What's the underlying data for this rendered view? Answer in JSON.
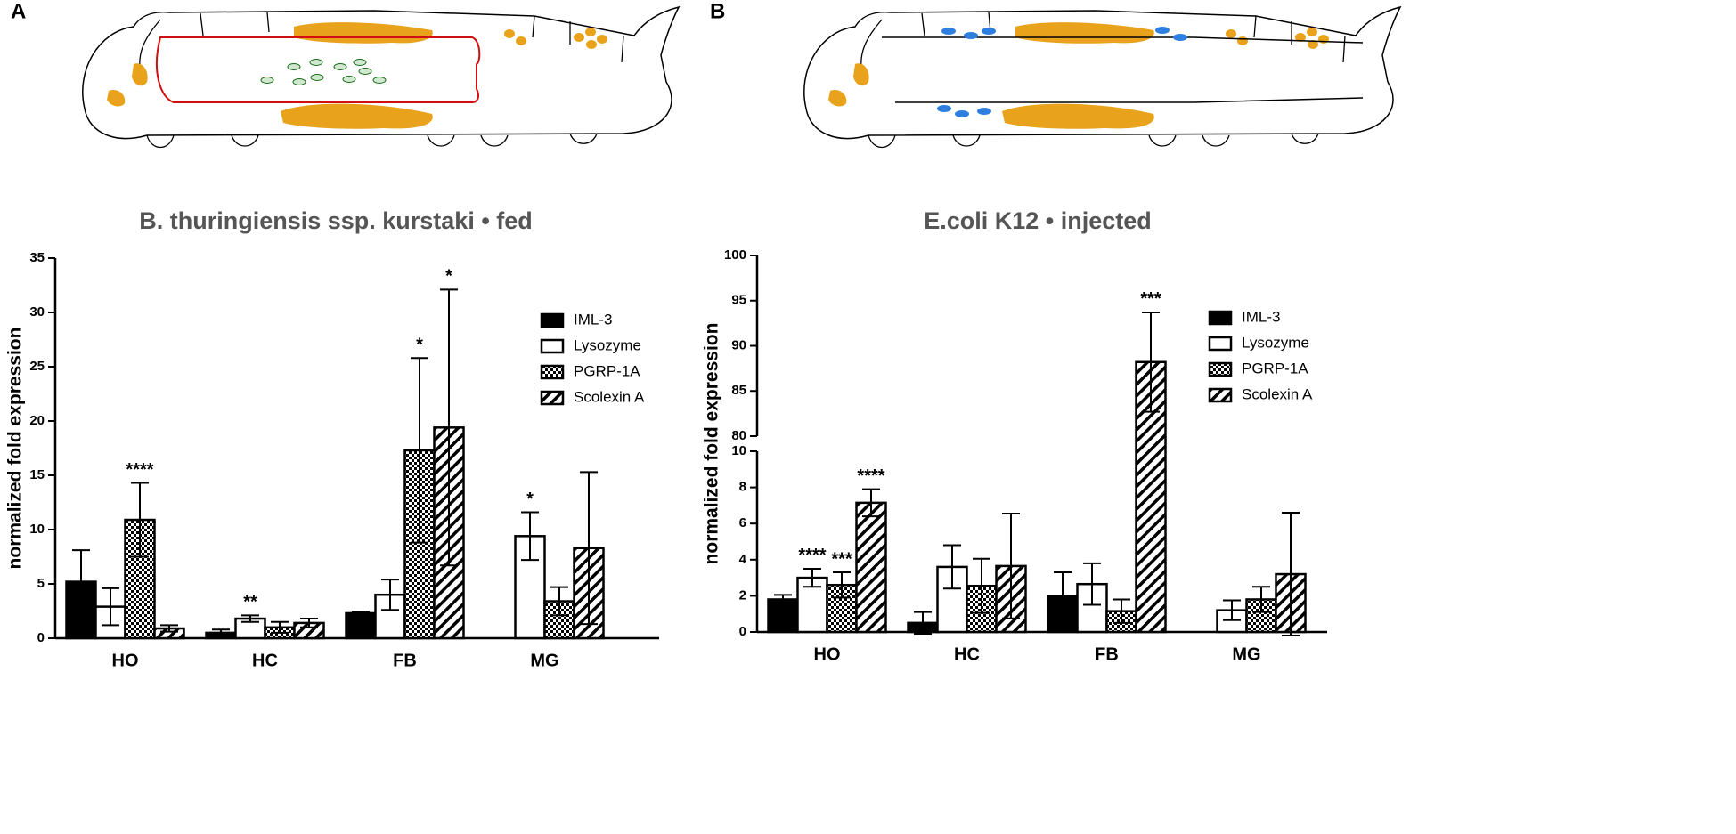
{
  "chart_data": [
    {
      "type": "bar",
      "panel": "A",
      "title": "B. thuringiensis ssp. kurstaki • fed",
      "y_label": "normalized fold expression",
      "categories": [
        "HO",
        "HC",
        "FB",
        "MG"
      ],
      "ylim": [
        0,
        35
      ],
      "yticks": [
        0,
        5,
        10,
        15,
        20,
        25,
        30,
        35
      ],
      "legend": "upper right",
      "series": [
        {
          "name": "IML-3",
          "color": "#000000",
          "fill": "solid",
          "values": [
            5.2,
            0.5,
            2.3,
            null
          ],
          "errors": [
            2.9,
            0.3,
            0.1,
            null
          ],
          "stars": [
            null,
            null,
            null,
            null
          ]
        },
        {
          "name": "Lysozyme",
          "color": "#000000",
          "fill": "open",
          "values": [
            2.9,
            1.8,
            4.0,
            9.4
          ],
          "errors": [
            1.7,
            0.3,
            1.4,
            2.2
          ],
          "stars": [
            null,
            "**",
            null,
            "*"
          ]
        },
        {
          "name": "PGRP-1A",
          "color": "#000000",
          "fill": "checker",
          "values": [
            10.9,
            1.0,
            17.3,
            3.4
          ],
          "errors": [
            3.4,
            0.5,
            8.5,
            1.3
          ],
          "stars": [
            "****",
            null,
            "*",
            null
          ]
        },
        {
          "name": "Scolexin A",
          "color": "#000000",
          "fill": "hatch",
          "values": [
            0.9,
            1.4,
            19.4,
            8.3
          ],
          "errors": [
            0.3,
            0.4,
            12.7,
            7.0
          ],
          "stars": [
            null,
            null,
            "*",
            null
          ]
        }
      ]
    },
    {
      "type": "bar",
      "panel": "B",
      "title": "E.coli K12 • injected",
      "y_label": "normalized fold expression",
      "categories": [
        "HO",
        "HC",
        "FB",
        "MG"
      ],
      "ylim": [
        0,
        100
      ],
      "ybreak": [
        10,
        80
      ],
      "yticks": [
        0,
        2,
        4,
        6,
        8,
        10,
        80,
        85,
        90,
        95,
        100
      ],
      "legend": "upper right",
      "series": [
        {
          "name": "IML-3",
          "color": "#000000",
          "fill": "solid",
          "values": [
            1.8,
            0.5,
            2.0,
            null
          ],
          "errors": [
            0.25,
            0.6,
            1.3,
            null
          ],
          "stars": [
            null,
            null,
            null,
            null
          ]
        },
        {
          "name": "Lysozyme",
          "color": "#000000",
          "fill": "open",
          "values": [
            3.0,
            3.6,
            2.65,
            1.2
          ],
          "errors": [
            0.5,
            1.2,
            1.15,
            0.55
          ],
          "stars": [
            "****",
            null,
            null,
            null
          ]
        },
        {
          "name": "PGRP-1A",
          "color": "#000000",
          "fill": "checker",
          "values": [
            2.6,
            2.55,
            1.15,
            1.8
          ],
          "errors": [
            0.7,
            1.5,
            0.65,
            0.7
          ],
          "stars": [
            "***",
            null,
            null,
            null
          ]
        },
        {
          "name": "Scolexin A",
          "color": "#000000",
          "fill": "hatch",
          "values": [
            7.15,
            3.65,
            88.2,
            3.2
          ],
          "errors": [
            0.75,
            2.9,
            5.5,
            3.4
          ],
          "stars": [
            "****",
            null,
            "***",
            null
          ]
        }
      ]
    }
  ]
}
